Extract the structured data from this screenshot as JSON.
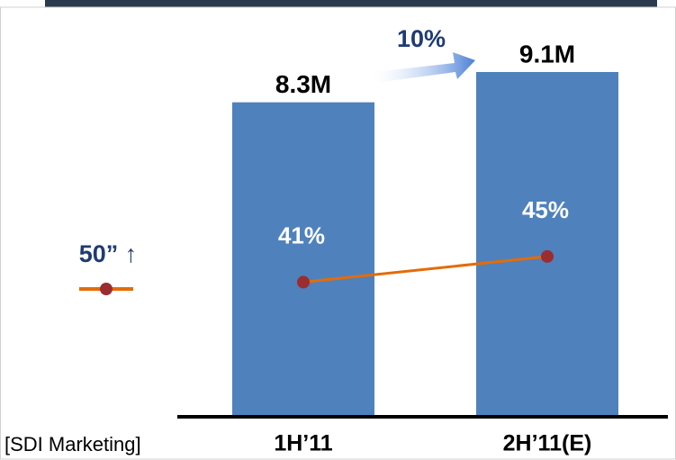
{
  "chart_data": {
    "type": "bar",
    "categories": [
      "1H’11",
      "2H’11(E)"
    ],
    "values": [
      8.3,
      9.1
    ],
    "value_labels": [
      "8.3M",
      "9.1M"
    ],
    "color": "#4f81bd",
    "ylim": [
      0,
      11
    ],
    "line": {
      "name": "50” ↑",
      "values": [
        41,
        45
      ],
      "value_labels": [
        "41%",
        "45%"
      ],
      "color": "#e36c09",
      "marker_color": "#9b2d30",
      "axis": "y2"
    },
    "y2lim": [
      20,
      85
    ],
    "annotation": "10%",
    "source": "[SDI Marketing]"
  }
}
